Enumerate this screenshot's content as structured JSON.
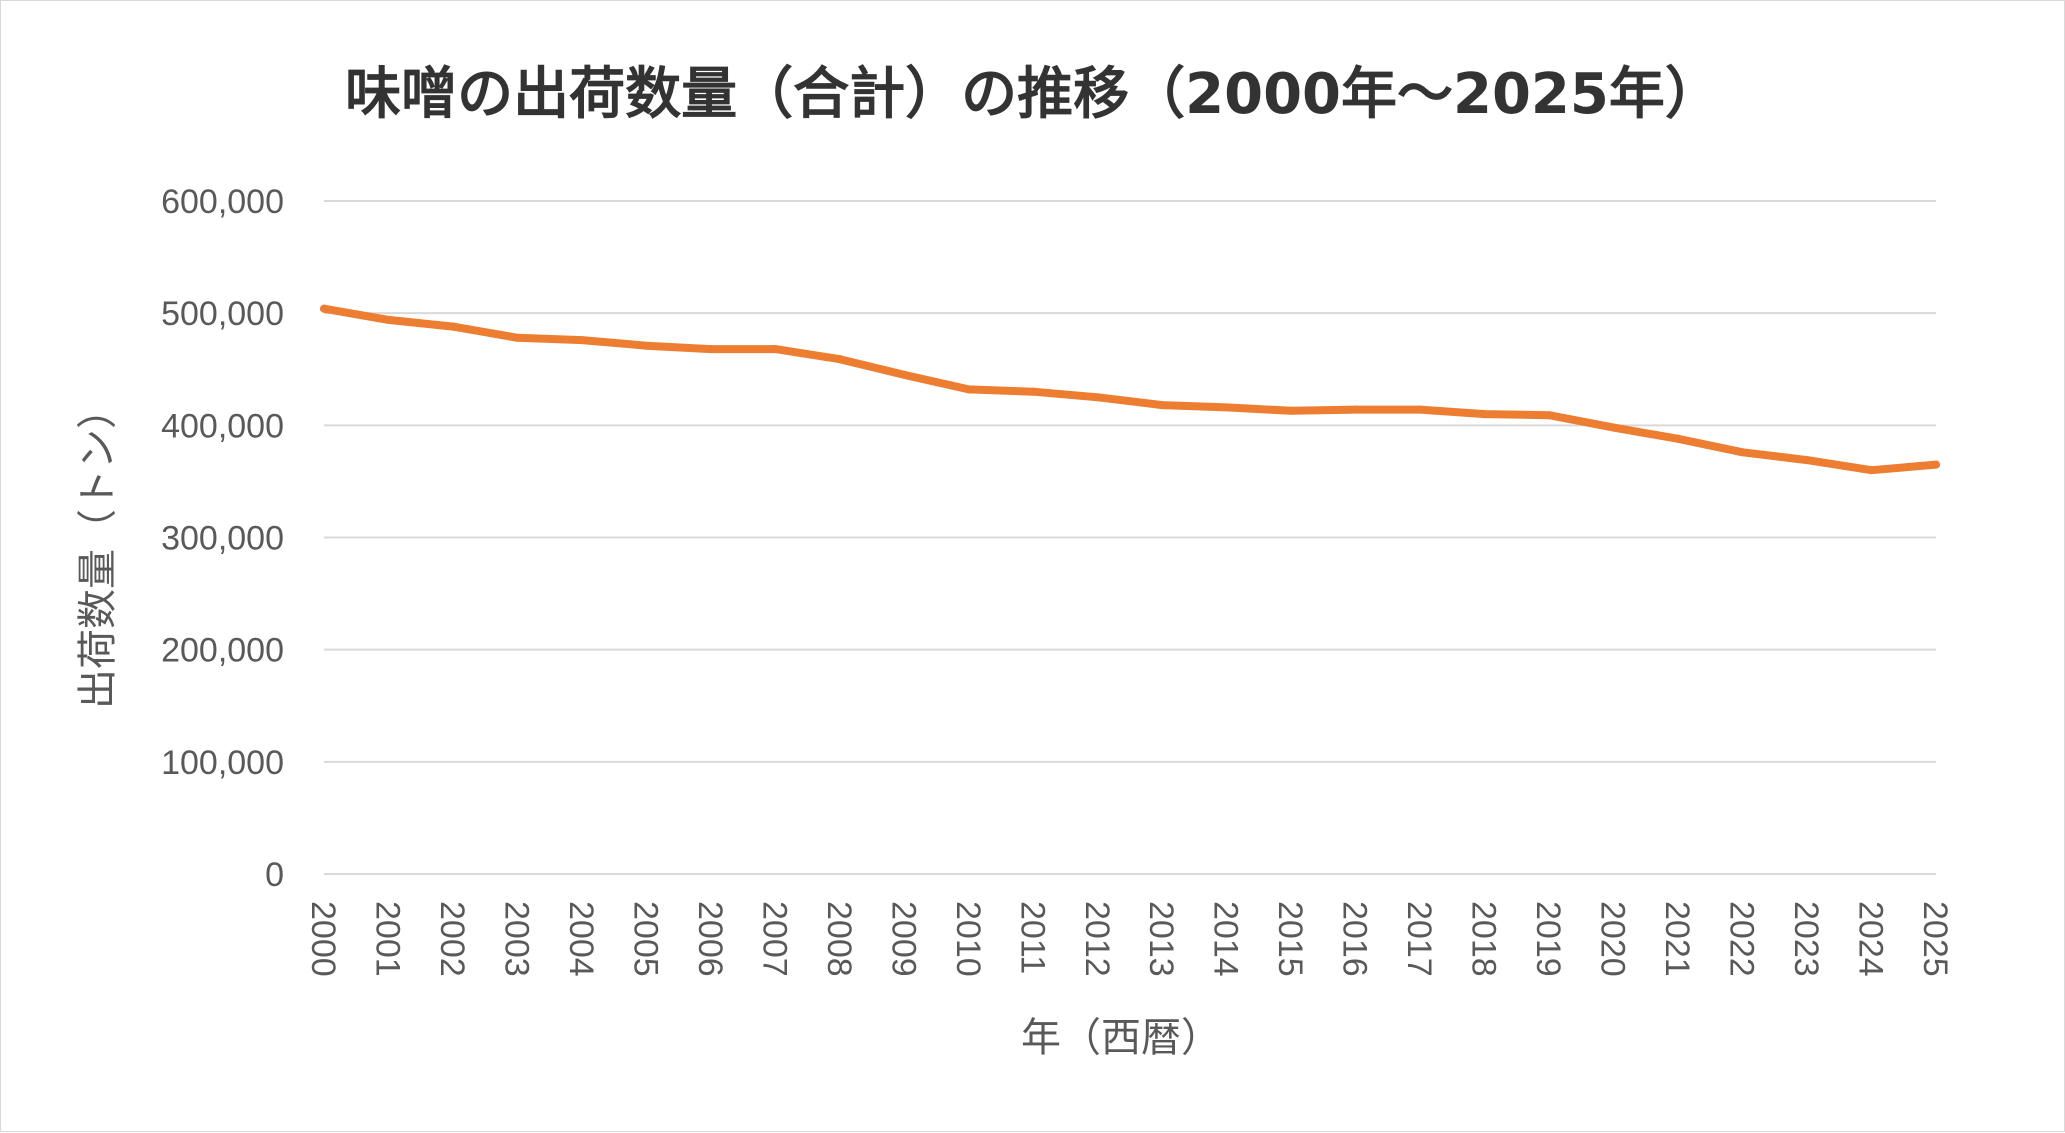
{
  "chart_data": {
    "type": "line",
    "title": "味噌の出荷数量（合計）の推移（2000年～2025年）",
    "xlabel": "年（西暦）",
    "ylabel": "出荷数量（トン）",
    "ylim": [
      0,
      600000
    ],
    "y_ticks": [
      0,
      100000,
      200000,
      300000,
      400000,
      500000,
      600000
    ],
    "y_tick_labels": [
      "0",
      "100,000",
      "200,000",
      "300,000",
      "400,000",
      "500,000",
      "600,000"
    ],
    "grid": true,
    "legend": "none",
    "categories": [
      "2000",
      "2001",
      "2002",
      "2003",
      "2004",
      "2005",
      "2006",
      "2007",
      "2008",
      "2009",
      "2010",
      "2011",
      "2012",
      "2013",
      "2014",
      "2015",
      "2016",
      "2017",
      "2018",
      "2019",
      "2020",
      "2021",
      "2022",
      "2023",
      "2024",
      "2025"
    ],
    "series": [
      {
        "color": "#ed7d31",
        "values": [
          504000,
          494000,
          488000,
          478000,
          476000,
          471000,
          468000,
          468000,
          459000,
          445000,
          432000,
          430000,
          425000,
          418000,
          416000,
          413000,
          414000,
          414000,
          410000,
          409000,
          398000,
          388000,
          376000,
          369000,
          360000,
          365000
        ]
      }
    ]
  }
}
